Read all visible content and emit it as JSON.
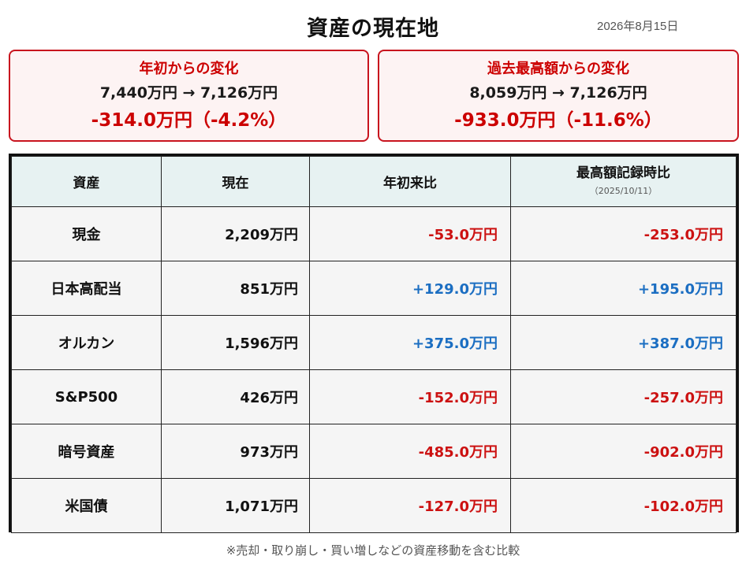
{
  "header": {
    "title": "資産の現在地",
    "date": "2026年8月15日"
  },
  "cards": {
    "ytd": {
      "title": "年初からの変化",
      "range": "7,440万円 → 7,126万円",
      "change": "-314.0万円（-4.2%）"
    },
    "peak": {
      "title": "過去最高額からの変化",
      "range": "8,059万円 → 7,126万円",
      "change": "-933.0万円（-11.6%）"
    }
  },
  "table": {
    "headers": {
      "asset": "資産",
      "current": "現在",
      "ytd": "年初来比",
      "peak": "最高額記録時比",
      "peak_date": "（2025/10/11）"
    },
    "rows": [
      {
        "asset": "現金",
        "current": "2,209万円",
        "ytd": "-53.0万円",
        "peak": "-253.0万円"
      },
      {
        "asset": "日本高配当",
        "current": "851万円",
        "ytd": "+129.0万円",
        "peak": "+195.0万円"
      },
      {
        "asset": "オルカン",
        "current": "1,596万円",
        "ytd": "+375.0万円",
        "peak": "+387.0万円"
      },
      {
        "asset": "S&P500",
        "current": "426万円",
        "ytd": "-152.0万円",
        "peak": "-257.0万円"
      },
      {
        "asset": "暗号資産",
        "current": "973万円",
        "ytd": "-485.0万円",
        "peak": "-902.0万円"
      },
      {
        "asset": "米国債",
        "current": "1,071万円",
        "ytd": "-127.0万円",
        "peak": "-102.0万円"
      }
    ]
  },
  "footnote": "※売却・取り崩し・買い増しなどの資産移動を含む比較",
  "colors": {
    "negative": "#cc1111",
    "positive": "#1b6ec2",
    "card_border": "#c8141e",
    "header_bg": "#e7f2f2"
  }
}
